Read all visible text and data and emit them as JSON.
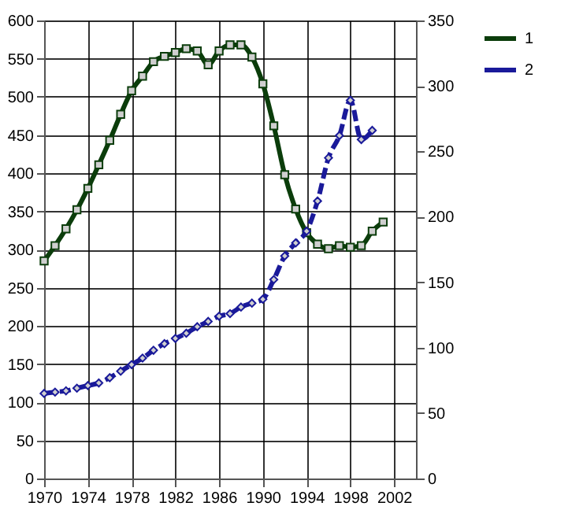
{
  "chart_data": {
    "type": "line",
    "x": [
      1970,
      1971,
      1972,
      1973,
      1974,
      1975,
      1976,
      1977,
      1978,
      1979,
      1980,
      1981,
      1982,
      1983,
      1984,
      1985,
      1986,
      1987,
      1988,
      1989,
      1990,
      1991,
      1992,
      1993,
      1994,
      1995,
      1996,
      1997,
      1998,
      1999,
      2000,
      2001
    ],
    "series": [
      {
        "name": "1",
        "color": "#0b3d0b",
        "marker": "square",
        "line_style": "solid",
        "values": [
          285,
          305,
          327,
          352,
          380,
          411,
          443,
          477,
          508,
          527,
          546,
          553,
          558,
          563,
          560,
          542,
          560,
          568,
          568,
          552,
          517,
          462,
          398,
          353,
          322,
          307,
          301,
          305,
          303,
          305,
          324,
          336
        ]
      },
      {
        "name": "2",
        "color": "#1a1a9a",
        "marker": "diamond",
        "line_style": "dashed",
        "axis": "y2",
        "x": [
          1970,
          1971,
          1972,
          1973,
          1974,
          1975,
          1976,
          1977,
          1978,
          1979,
          1980,
          1981,
          1982,
          1983,
          1984,
          1985,
          1986,
          1987,
          1988,
          1989,
          1990,
          1991,
          1992,
          1993,
          1994,
          1995,
          1996,
          1997,
          1998,
          1999,
          2000
        ],
        "values": [
          65,
          66,
          67,
          69,
          71,
          73,
          77,
          82,
          87,
          92,
          98,
          103,
          107,
          111,
          116,
          120,
          124,
          126,
          131,
          134,
          137,
          152,
          170,
          180,
          189,
          212,
          245,
          262,
          289,
          259,
          266
        ]
      }
    ],
    "xlim": [
      1970,
      2004
    ],
    "xticks": [
      1970,
      1974,
      1978,
      1982,
      1986,
      1990,
      1994,
      1998,
      2002
    ],
    "ylim": [
      0,
      600
    ],
    "yticks": [
      0,
      50,
      100,
      150,
      200,
      250,
      300,
      350,
      400,
      450,
      500,
      550,
      600
    ],
    "y2lim": [
      0,
      350
    ],
    "y2ticks": [
      0,
      50,
      100,
      150,
      200,
      250,
      300,
      350
    ],
    "grid": true,
    "legend": "right"
  }
}
